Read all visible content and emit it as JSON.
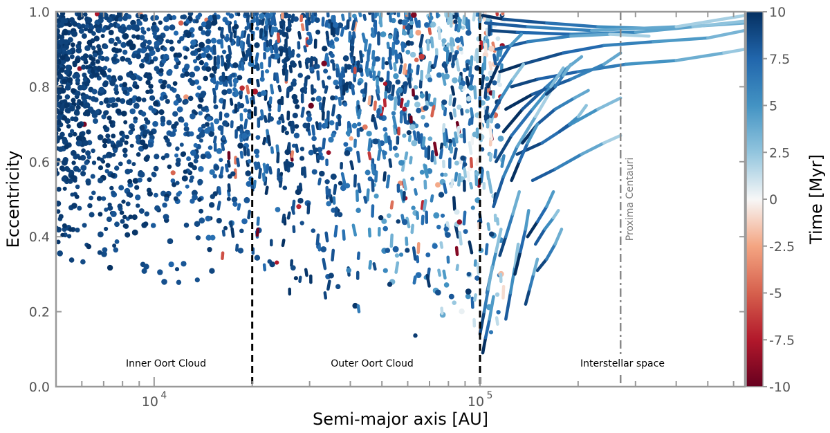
{
  "chart_data": {
    "type": "scatter",
    "xlabel": "Semi-major axis [AU]",
    "ylabel": "Eccentricity",
    "xscale": "log",
    "xlim": [
      5000,
      650000
    ],
    "ylim": [
      0.0,
      1.0
    ],
    "grid": false,
    "x_ticks": [
      {
        "value": 10000,
        "base": "10",
        "exp": "4"
      },
      {
        "value": 100000,
        "base": "10",
        "exp": "5"
      }
    ],
    "y_ticks": [
      "0.0",
      "0.2",
      "0.4",
      "0.6",
      "0.8",
      "1.0"
    ],
    "colorbar": {
      "label": "Time [Myr]",
      "range": [
        -10,
        10
      ],
      "cmap": "RdBu",
      "ticks": [
        "10",
        "7.5",
        "5",
        "2.5",
        "0",
        "-2.5",
        "-5",
        "-7.5",
        "-10"
      ]
    },
    "boundaries": [
      {
        "x": 20000,
        "style": "dashed",
        "color": "#000000"
      },
      {
        "x": 100000,
        "style": "dashed",
        "color": "#000000"
      }
    ],
    "reference_line": {
      "x": 270000,
      "label": "Proxima Centauri",
      "style": "dashdot",
      "color": "#888888"
    },
    "regions": [
      "Inner Oort Cloud",
      "Outer Oort Cloud",
      "Interstellar space"
    ],
    "trajectories": [
      {
        "points": [
          [
            102000,
            0.99
          ],
          [
            118000,
            0.98
          ],
          [
            160000,
            0.97
          ],
          [
            230000,
            0.96
          ],
          [
            350000,
            0.955
          ],
          [
            650000,
            0.97
          ]
        ]
      },
      {
        "points": [
          [
            108000,
            0.95
          ],
          [
            130000,
            0.945
          ],
          [
            190000,
            0.94
          ],
          [
            300000,
            0.945
          ],
          [
            450000,
            0.96
          ],
          [
            650000,
            0.975
          ]
        ]
      },
      {
        "points": [
          [
            104000,
            0.97
          ],
          [
            140000,
            0.96
          ],
          [
            220000,
            0.95
          ],
          [
            400000,
            0.96
          ],
          [
            650000,
            0.99
          ]
        ]
      },
      {
        "points": [
          [
            115000,
            0.84
          ],
          [
            135000,
            0.86
          ],
          [
            180000,
            0.89
          ],
          [
            240000,
            0.91
          ],
          [
            340000,
            0.92
          ],
          [
            500000,
            0.93
          ],
          [
            650000,
            0.95
          ]
        ]
      },
      {
        "points": [
          [
            125000,
            0.8
          ],
          [
            150000,
            0.82
          ],
          [
            200000,
            0.84
          ],
          [
            280000,
            0.86
          ],
          [
            400000,
            0.87
          ],
          [
            560000,
            0.89
          ],
          [
            650000,
            0.9
          ]
        ]
      },
      {
        "points": [
          [
            112000,
            0.9
          ],
          [
            140000,
            0.92
          ],
          [
            190000,
            0.935
          ],
          [
            250000,
            0.94
          ],
          [
            330000,
            0.935
          ]
        ]
      },
      {
        "points": [
          [
            120000,
            0.74
          ],
          [
            145000,
            0.78
          ],
          [
            190000,
            0.82
          ],
          [
            240000,
            0.86
          ],
          [
            270000,
            0.89
          ]
        ]
      },
      {
        "points": [
          [
            130000,
            0.62
          ],
          [
            155000,
            0.65
          ],
          [
            190000,
            0.7
          ],
          [
            230000,
            0.74
          ],
          [
            270000,
            0.77
          ]
        ]
      },
      {
        "points": [
          [
            145000,
            0.55
          ],
          [
            170000,
            0.58
          ],
          [
            205000,
            0.62
          ],
          [
            240000,
            0.65
          ],
          [
            270000,
            0.67
          ]
        ]
      },
      {
        "points": [
          [
            118000,
            0.68
          ],
          [
            135000,
            0.74
          ],
          [
            160000,
            0.8
          ],
          [
            185000,
            0.85
          ],
          [
            205000,
            0.88
          ]
        ]
      },
      {
        "points": [
          [
            112000,
            0.6
          ],
          [
            125000,
            0.67
          ],
          [
            145000,
            0.74
          ],
          [
            165000,
            0.8
          ],
          [
            180000,
            0.85
          ]
        ]
      },
      {
        "points": [
          [
            110000,
            0.48
          ],
          [
            118000,
            0.56
          ],
          [
            130000,
            0.64
          ],
          [
            148000,
            0.72
          ],
          [
            165000,
            0.79
          ]
        ]
      },
      {
        "points": [
          [
            135000,
            0.65
          ],
          [
            150000,
            0.7
          ],
          [
            170000,
            0.74
          ],
          [
            195000,
            0.77
          ],
          [
            215000,
            0.79
          ]
        ]
      },
      {
        "points": [
          [
            150000,
            0.31
          ],
          [
            160000,
            0.34
          ],
          [
            170000,
            0.38
          ],
          [
            178000,
            0.42
          ]
        ]
      },
      {
        "points": [
          [
            148000,
            0.38
          ],
          [
            158000,
            0.42
          ],
          [
            168000,
            0.45
          ],
          [
            174000,
            0.47
          ]
        ]
      },
      {
        "points": [
          [
            140000,
            0.4
          ],
          [
            150000,
            0.44
          ],
          [
            160000,
            0.48
          ],
          [
            168000,
            0.52
          ]
        ]
      },
      {
        "points": [
          [
            138000,
            0.22
          ],
          [
            142000,
            0.26
          ],
          [
            146000,
            0.3
          ],
          [
            150000,
            0.34
          ]
        ]
      },
      {
        "points": [
          [
            105000,
            0.25
          ],
          [
            108000,
            0.3
          ],
          [
            112000,
            0.36
          ],
          [
            116000,
            0.42
          ]
        ]
      },
      {
        "points": [
          [
            102000,
            0.09
          ],
          [
            104000,
            0.13
          ],
          [
            107000,
            0.18
          ],
          [
            110000,
            0.24
          ]
        ]
      },
      {
        "points": [
          [
            100000,
            0.14
          ],
          [
            103000,
            0.2
          ],
          [
            106000,
            0.26
          ],
          [
            109000,
            0.32
          ]
        ]
      },
      {
        "points": [
          [
            120000,
            0.18
          ],
          [
            124000,
            0.25
          ],
          [
            128000,
            0.32
          ],
          [
            131000,
            0.38
          ]
        ]
      },
      {
        "points": [
          [
            128000,
            0.3
          ],
          [
            133000,
            0.36
          ],
          [
            138000,
            0.42
          ],
          [
            141000,
            0.47
          ]
        ]
      },
      {
        "points": [
          [
            160000,
            0.78
          ],
          [
            170000,
            0.8
          ],
          [
            180000,
            0.83
          ],
          [
            190000,
            0.86
          ]
        ]
      },
      {
        "points": [
          [
            175000,
            0.68
          ],
          [
            188000,
            0.7
          ],
          [
            200000,
            0.72
          ],
          [
            212000,
            0.75
          ]
        ]
      },
      {
        "points": [
          [
            125000,
            0.55
          ],
          [
            132000,
            0.6
          ],
          [
            140000,
            0.65
          ],
          [
            150000,
            0.7
          ]
        ]
      },
      {
        "points": [
          [
            115000,
            0.35
          ],
          [
            120000,
            0.4
          ],
          [
            126000,
            0.46
          ],
          [
            132000,
            0.52
          ]
        ]
      },
      {
        "points": [
          [
            108000,
            0.72
          ],
          [
            116000,
            0.77
          ],
          [
            126000,
            0.82
          ],
          [
            136000,
            0.86
          ]
        ]
      },
      {
        "points": [
          [
            106000,
            0.8
          ],
          [
            114000,
            0.86
          ],
          [
            124000,
            0.91
          ],
          [
            134000,
            0.94
          ]
        ]
      }
    ]
  }
}
